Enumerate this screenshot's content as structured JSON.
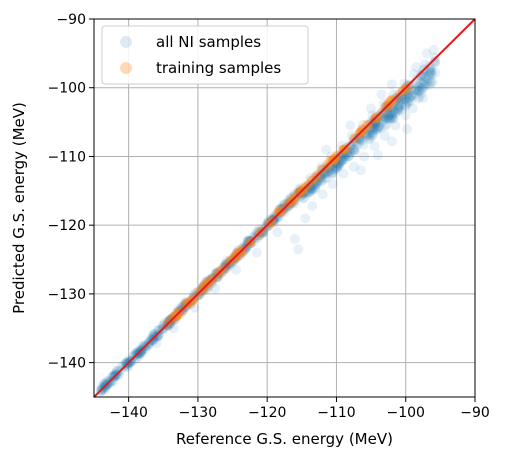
{
  "chart_data": {
    "type": "scatter",
    "xlabel": "Reference G.S. energy  (MeV)",
    "ylabel": "Predicted G.S. energy  (MeV)",
    "xlim": [
      -145,
      -90
    ],
    "ylim": [
      -145,
      -90
    ],
    "xticks": [
      -140,
      -130,
      -120,
      -110,
      -100,
      -90
    ],
    "yticks": [
      -140,
      -130,
      -120,
      -110,
      -100,
      -90
    ],
    "xtick_labels": [
      "−140",
      "−130",
      "−120",
      "−110",
      "−100",
      "−90"
    ],
    "ytick_labels": [
      "−140",
      "−130",
      "−120",
      "−110",
      "−100",
      "−90"
    ],
    "grid": true,
    "legend_position": "top-left",
    "series": [
      {
        "name": "all NI samples",
        "color": "#1f77b4",
        "points": [
          [
            -143.5,
            -143.3
          ],
          [
            -141.8,
            -141.6
          ],
          [
            -140.5,
            -140.7
          ],
          [
            -139.2,
            -139.0
          ],
          [
            -138.0,
            -137.6
          ],
          [
            -137.2,
            -137.5
          ],
          [
            -136.5,
            -136.0
          ],
          [
            -135.6,
            -135.9
          ],
          [
            -134.8,
            -134.2
          ],
          [
            -134.0,
            -134.4
          ],
          [
            -133.2,
            -132.8
          ],
          [
            -132.5,
            -132.9
          ],
          [
            -131.8,
            -131.2
          ],
          [
            -131.0,
            -131.4
          ],
          [
            -130.3,
            -129.8
          ],
          [
            -129.5,
            -129.9
          ],
          [
            -128.8,
            -128.2
          ],
          [
            -128.0,
            -128.5
          ],
          [
            -127.2,
            -126.8
          ],
          [
            -126.5,
            -126.9
          ],
          [
            -125.8,
            -125.2
          ],
          [
            -125.0,
            -125.5
          ],
          [
            -124.2,
            -123.6
          ],
          [
            -123.5,
            -124.0
          ],
          [
            -122.8,
            -122.2
          ],
          [
            -122.0,
            -122.5
          ],
          [
            -121.2,
            -120.6
          ],
          [
            -120.5,
            -121.0
          ],
          [
            -119.8,
            -119.3
          ],
          [
            -119.0,
            -119.6
          ],
          [
            -118.2,
            -117.6
          ],
          [
            -117.5,
            -118.1
          ],
          [
            -116.8,
            -116.2
          ],
          [
            -116.0,
            -116.8
          ],
          [
            -115.2,
            -114.6
          ],
          [
            -114.5,
            -115.2
          ],
          [
            -113.8,
            -113.1
          ],
          [
            -113.0,
            -113.9
          ],
          [
            -112.2,
            -111.5
          ],
          [
            -111.5,
            -112.4
          ],
          [
            -110.8,
            -110.0
          ],
          [
            -110.0,
            -111.0
          ],
          [
            -109.2,
            -108.4
          ],
          [
            -108.5,
            -109.6
          ],
          [
            -107.8,
            -107.0
          ],
          [
            -107.0,
            -108.3
          ],
          [
            -106.2,
            -105.4
          ],
          [
            -105.5,
            -106.9
          ],
          [
            -104.8,
            -104.0
          ],
          [
            -104.0,
            -105.6
          ],
          [
            -103.2,
            -102.4
          ],
          [
            -102.5,
            -104.2
          ],
          [
            -101.8,
            -101.0
          ],
          [
            -101.0,
            -102.9
          ],
          [
            -100.2,
            -99.4
          ],
          [
            -99.5,
            -101.5
          ],
          [
            -98.8,
            -98.0
          ],
          [
            -98.0,
            -99.8
          ],
          [
            -97.2,
            -96.6
          ],
          [
            -96.5,
            -98.2
          ],
          [
            -95.8,
            -95.6
          ],
          [
            -107.5,
            -111.5
          ],
          [
            -106.0,
            -110.0
          ],
          [
            -104.5,
            -108.5
          ],
          [
            -103.0,
            -107.0
          ],
          [
            -110.5,
            -114.0
          ],
          [
            -112.0,
            -115.5
          ],
          [
            -113.5,
            -117.2
          ],
          [
            -101.5,
            -105.5
          ],
          [
            -100.0,
            -104.0
          ],
          [
            -99.0,
            -103.0
          ],
          [
            -97.5,
            -101.5
          ],
          [
            -105.0,
            -103.0
          ],
          [
            -108.0,
            -105.5
          ],
          [
            -111.5,
            -109.0
          ],
          [
            -103.5,
            -101.0
          ],
          [
            -114.5,
            -119.0
          ],
          [
            -116.0,
            -122.0
          ],
          [
            -115.5,
            -123.5
          ],
          [
            -118.5,
            -121.0
          ],
          [
            -121.5,
            -124.0
          ],
          [
            -124.5,
            -126.5
          ],
          [
            -127.5,
            -129.2
          ],
          [
            -130.5,
            -132.0
          ],
          [
            -133.5,
            -135.0
          ],
          [
            -136.0,
            -137.2
          ],
          [
            -96.0,
            -94.5
          ],
          [
            -97.0,
            -95.0
          ],
          [
            -98.5,
            -97.0
          ],
          [
            -102.0,
            -99.5
          ],
          [
            -109.0,
            -112.5
          ],
          [
            -106.5,
            -112.0
          ],
          [
            -104.0,
            -109.8
          ],
          [
            -102.0,
            -107.8
          ],
          [
            -99.8,
            -106.0
          ]
        ]
      },
      {
        "name": "training samples",
        "color": "#ff7f0e",
        "points": [
          [
            -134.5,
            -134.5
          ],
          [
            -133.0,
            -133.1
          ],
          [
            -131.5,
            -131.3
          ],
          [
            -130.0,
            -130.1
          ],
          [
            -128.5,
            -128.4
          ],
          [
            -127.0,
            -127.1
          ],
          [
            -125.5,
            -125.4
          ],
          [
            -124.0,
            -124.1
          ],
          [
            -122.5,
            -122.5
          ],
          [
            -121.0,
            -120.9
          ],
          [
            -119.5,
            -119.6
          ],
          [
            -118.0,
            -118.0
          ],
          [
            -116.5,
            -116.4
          ],
          [
            -115.0,
            -115.1
          ],
          [
            -113.5,
            -113.5
          ],
          [
            -112.0,
            -111.9
          ],
          [
            -110.5,
            -110.6
          ],
          [
            -109.0,
            -109.0
          ],
          [
            -107.5,
            -107.4
          ],
          [
            -106.0,
            -106.1
          ],
          [
            -104.5,
            -104.5
          ],
          [
            -103.0,
            -102.9
          ],
          [
            -101.5,
            -101.6
          ],
          [
            -100.0,
            -100.0
          ]
        ]
      },
      {
        "name": "",
        "color": "#e41a1c",
        "type": "line",
        "points": [
          [
            -145,
            -145
          ],
          [
            -90,
            -90
          ]
        ]
      }
    ]
  }
}
